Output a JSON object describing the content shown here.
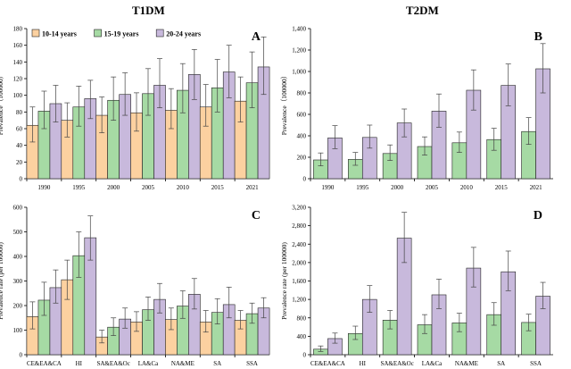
{
  "figure": {
    "col_titles": [
      "T1DM",
      "T2DM"
    ]
  },
  "colors": {
    "orange": "#fcd1a0",
    "green": "#a6daa4",
    "purple": "#c8b9dc",
    "stroke": "#222222"
  },
  "chart_data": [
    {
      "panel": "A",
      "type": "bar",
      "ylabel": "Prevalence（100000）",
      "ylim": [
        0,
        180
      ],
      "yticks": [
        0,
        20,
        40,
        60,
        80,
        100,
        120,
        140,
        160,
        180
      ],
      "categories": [
        "1990",
        "1995",
        "2000",
        "2005",
        "2010",
        "2015",
        "2021"
      ],
      "legend": "top-left",
      "grid": false,
      "series": [
        {
          "name": "10-14 years",
          "color": "orange",
          "values": [
            64,
            70,
            76,
            79,
            82,
            86,
            93
          ],
          "err_low": [
            44,
            50,
            55,
            57,
            60,
            63,
            68
          ],
          "err_high": [
            86,
            91,
            98,
            103,
            108,
            113,
            122
          ]
        },
        {
          "name": "15-19 years",
          "color": "green",
          "values": [
            81,
            86,
            94,
            102,
            106,
            109,
            115
          ],
          "err_low": [
            60,
            63,
            70,
            76,
            79,
            80,
            85
          ],
          "err_high": [
            105,
            111,
            122,
            132,
            138,
            143,
            152
          ]
        },
        {
          "name": "20-24 years",
          "color": "purple",
          "values": [
            90,
            96,
            101,
            112,
            125,
            128,
            134
          ],
          "err_low": [
            68,
            72,
            76,
            85,
            95,
            97,
            101
          ],
          "err_high": [
            112,
            118,
            127,
            144,
            155,
            160,
            170
          ]
        }
      ]
    },
    {
      "panel": "B",
      "type": "bar",
      "ylabel": "Prevalence（100000）",
      "ylim": [
        0,
        1400
      ],
      "yticks": [
        0,
        200,
        400,
        600,
        800,
        1000,
        1200,
        1400
      ],
      "tick_format": "comma",
      "categories": [
        "1990",
        "1995",
        "2000",
        "2005",
        "2010",
        "2015",
        "2021"
      ],
      "grid": false,
      "series": [
        {
          "color": "green",
          "values": [
            175,
            180,
            235,
            300,
            335,
            365,
            440
          ],
          "err_low": [
            120,
            125,
            170,
            220,
            245,
            265,
            320
          ],
          "err_high": [
            240,
            245,
            315,
            390,
            435,
            470,
            570
          ]
        },
        {
          "color": "purple",
          "values": [
            380,
            385,
            520,
            630,
            825,
            870,
            1025
          ],
          "err_low": [
            280,
            285,
            390,
            480,
            640,
            680,
            800
          ],
          "err_high": [
            495,
            500,
            650,
            790,
            1015,
            1070,
            1260
          ]
        }
      ]
    },
    {
      "panel": "C",
      "type": "bar",
      "ylabel": "Prevalence rate (per 100000)",
      "ylim": [
        0,
        600
      ],
      "yticks": [
        0,
        100,
        200,
        300,
        400,
        500,
        600
      ],
      "categories": [
        "CE&EA&CA",
        "HI",
        "SA&EA&Oc",
        "LA&Ca",
        "NA&ME",
        "SA",
        "SSA"
      ],
      "grid": false,
      "series": [
        {
          "color": "orange",
          "values": [
            155,
            305,
            72,
            133,
            143,
            133,
            140
          ],
          "err_low": [
            105,
            225,
            48,
            95,
            102,
            92,
            105
          ],
          "err_high": [
            215,
            385,
            100,
            175,
            190,
            180,
            180
          ]
        },
        {
          "color": "green",
          "values": [
            222,
            403,
            112,
            183,
            198,
            172,
            167
          ],
          "err_low": [
            160,
            315,
            78,
            140,
            148,
            125,
            128
          ],
          "err_high": [
            295,
            500,
            150,
            235,
            260,
            228,
            210
          ]
        },
        {
          "color": "purple",
          "values": [
            273,
            476,
            145,
            225,
            246,
            204,
            190
          ],
          "err_low": [
            210,
            385,
            108,
            170,
            186,
            150,
            150
          ],
          "err_high": [
            345,
            565,
            190,
            290,
            310,
            275,
            232
          ]
        }
      ]
    },
    {
      "panel": "D",
      "type": "bar",
      "ylabel": "Prevalence rate (per 100000)",
      "ylim": [
        0,
        3200
      ],
      "yticks": [
        0,
        400,
        800,
        1200,
        1600,
        2000,
        2400,
        2800,
        3200
      ],
      "tick_format": "comma",
      "categories": [
        "CE&EA&CA",
        "HI",
        "SA&EA&Oc",
        "LA&Ca",
        "NA&ME",
        "SA",
        "SSA"
      ],
      "grid": false,
      "series": [
        {
          "color": "green",
          "values": [
            120,
            460,
            750,
            650,
            690,
            870,
            700
          ],
          "err_low": [
            70,
            330,
            560,
            460,
            500,
            640,
            520
          ],
          "err_high": [
            190,
            620,
            960,
            870,
            900,
            1130,
            880
          ]
        },
        {
          "color": "purple",
          "values": [
            350,
            1200,
            2530,
            1300,
            1880,
            1800,
            1270
          ],
          "err_low": [
            250,
            920,
            2000,
            1000,
            1470,
            1390,
            1000
          ],
          "err_high": [
            470,
            1500,
            3090,
            1640,
            2330,
            2250,
            1570
          ]
        }
      ]
    }
  ]
}
